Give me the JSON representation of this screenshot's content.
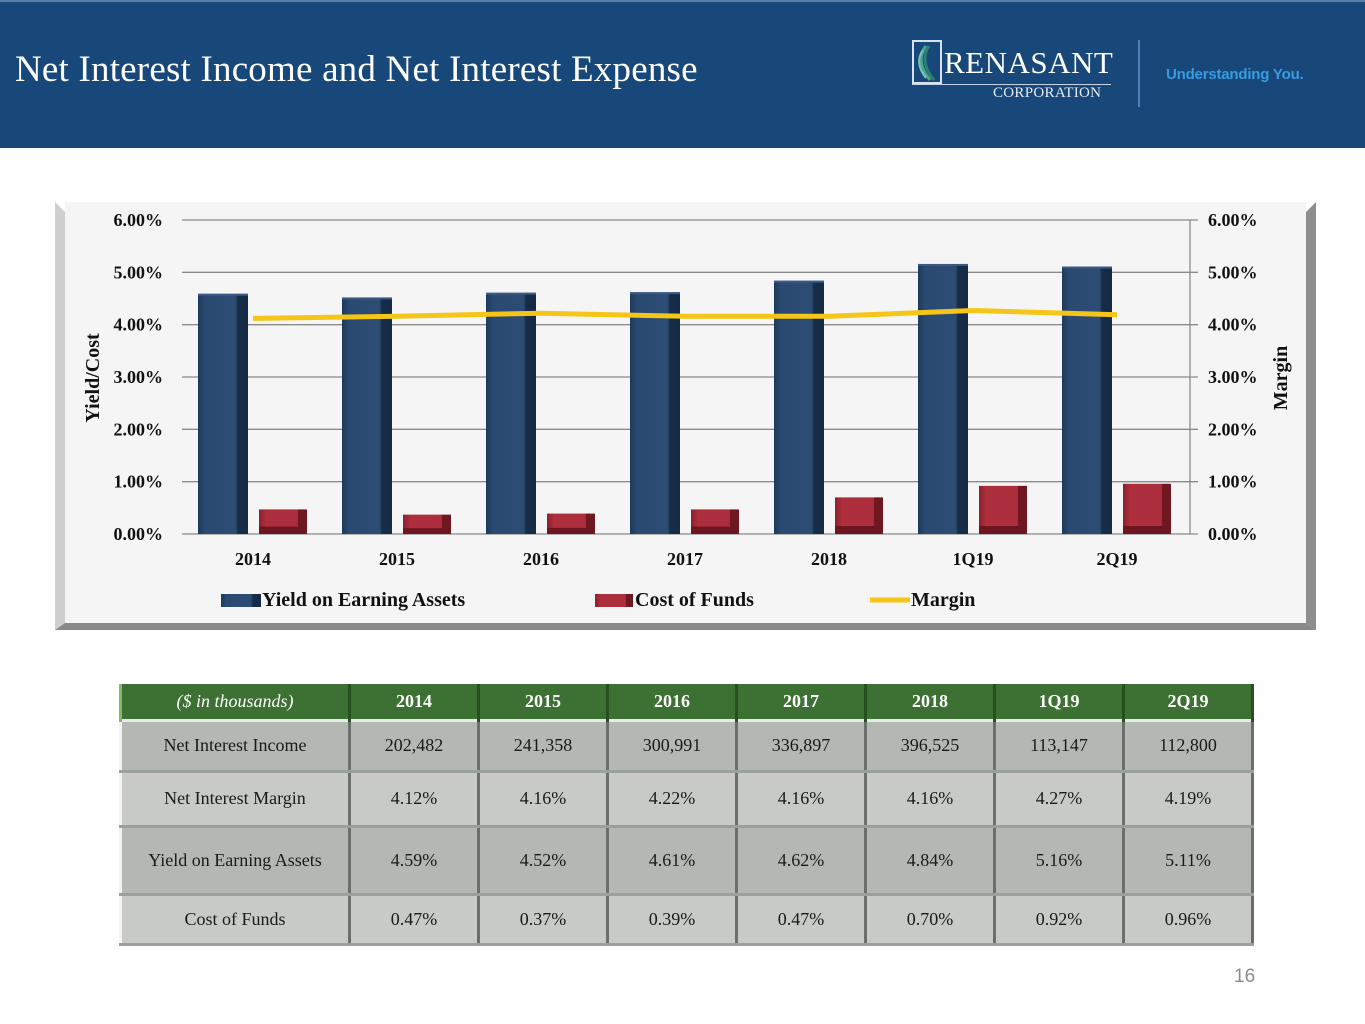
{
  "header": {
    "title": "Net Interest Income and Net Interest Expense",
    "logo_brand": "RENASANT",
    "logo_sub": "CORPORATION",
    "tagline": "Understanding You.",
    "background_color": "#18477a"
  },
  "chart_data": {
    "type": "bar",
    "title": "",
    "categories": [
      "2014",
      "2015",
      "2016",
      "2017",
      "2018",
      "1Q19",
      "2Q19"
    ],
    "series": [
      {
        "name": "Yield on Earning Assets",
        "kind": "bar",
        "axis": "left",
        "color": "#223e63",
        "values": [
          4.59,
          4.52,
          4.61,
          4.62,
          4.84,
          5.16,
          5.11
        ]
      },
      {
        "name": "Cost of Funds",
        "kind": "bar",
        "axis": "left",
        "color": "#a32a39",
        "values": [
          0.47,
          0.37,
          0.39,
          0.47,
          0.7,
          0.92,
          0.96
        ]
      },
      {
        "name": "Margin",
        "kind": "line",
        "axis": "right",
        "color": "#f5c518",
        "values": [
          4.12,
          4.16,
          4.22,
          4.16,
          4.16,
          4.27,
          4.19
        ]
      }
    ],
    "ylabel": "Yield/Cost",
    "y2label": "Margin",
    "ylim": [
      0,
      6
    ],
    "y2lim": [
      0,
      6
    ],
    "yticks": [
      "0.00%",
      "1.00%",
      "2.00%",
      "3.00%",
      "4.00%",
      "5.00%",
      "6.00%"
    ],
    "y2ticks": [
      "0.00%",
      "1.00%",
      "2.00%",
      "3.00%",
      "4.00%",
      "5.00%",
      "6.00%"
    ],
    "grid": true,
    "legend_position": "bottom"
  },
  "table": {
    "header": [
      "($ in thousands)",
      "2014",
      "2015",
      "2016",
      "2017",
      "2018",
      "1Q19",
      "2Q19"
    ],
    "rows": [
      {
        "label": "Net Interest Income",
        "values": [
          "202,482",
          "241,358",
          "300,991",
          "336,897",
          "396,525",
          "113,147",
          "112,800"
        ]
      },
      {
        "label": "Net Interest Margin",
        "values": [
          "4.12%",
          "4.16%",
          "4.22%",
          "4.16%",
          "4.16%",
          "4.27%",
          "4.19%"
        ]
      },
      {
        "label": "Yield on Earning Assets",
        "values": [
          "4.59%",
          "4.52%",
          "4.61%",
          "4.62%",
          "4.84%",
          "5.16%",
          "5.11%"
        ]
      },
      {
        "label": "Cost of Funds",
        "values": [
          "0.47%",
          "0.37%",
          "0.39%",
          "0.47%",
          "0.70%",
          "0.92%",
          "0.96%"
        ]
      }
    ]
  },
  "page_number": "16"
}
